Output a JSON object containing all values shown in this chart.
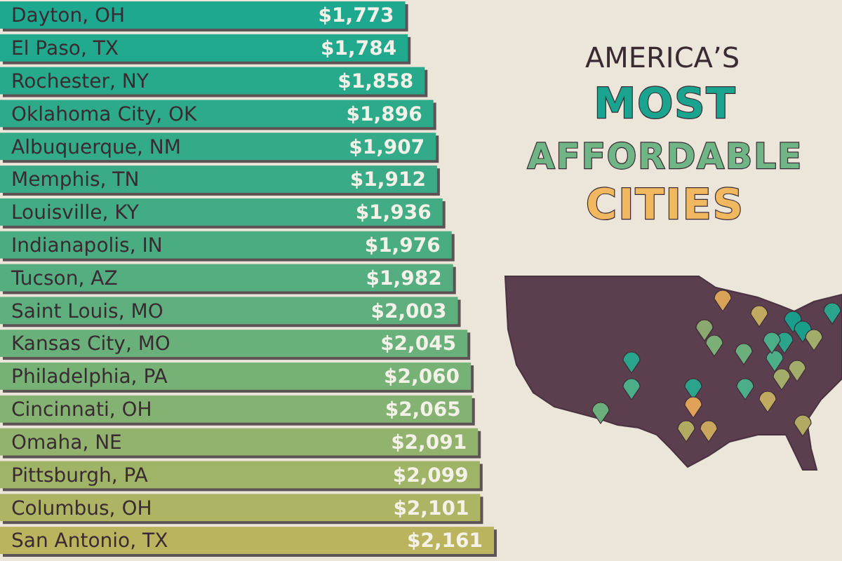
{
  "chart_data": {
    "type": "bar",
    "orientation": "horizontal",
    "title": "AMERICA’S",
    "subtitle": "MOST AFFORDABLE CITIES",
    "categories": [
      "Dayton, OH",
      "El Paso, TX",
      "Rochester, NY",
      "Oklahoma City, OK",
      "Albuquerque, NM",
      "Memphis, TN",
      "Louisville, KY",
      "Indianapolis, IN",
      "Tucson, AZ",
      "Saint Louis, MO",
      "Kansas City, MO",
      "Philadelphia, PA",
      "Cincinnati, OH",
      "Omaha, NE",
      "Pittsburgh, PA",
      "Columbus, OH",
      "San Antonio, TX"
    ],
    "values": [
      1773,
      1784,
      1858,
      1896,
      1907,
      1912,
      1936,
      1976,
      1982,
      2003,
      2045,
      2060,
      2065,
      2091,
      2099,
      2101,
      2161
    ],
    "colors": [
      "#1ea88f",
      "#21a98e",
      "#27a98c",
      "#2daa8a",
      "#33aa88",
      "#3aab86",
      "#42ac84",
      "#4aad82",
      "#54ae80",
      "#5eaf7d",
      "#6ab07a",
      "#76b176",
      "#84b272",
      "#92b36d",
      "#a0b468",
      "#adb463",
      "#bbb45e"
    ],
    "value_labels": [
      "$1,773",
      "$1,784",
      "$1,858",
      "$1,896",
      "$1,907",
      "$1,912",
      "$1,936",
      "$1,976",
      "$1,982",
      "$2,003",
      "$2,045",
      "$2,060",
      "$2,065",
      "$2,091",
      "$2,099",
      "$2,101",
      "$2,161"
    ]
  }
}
